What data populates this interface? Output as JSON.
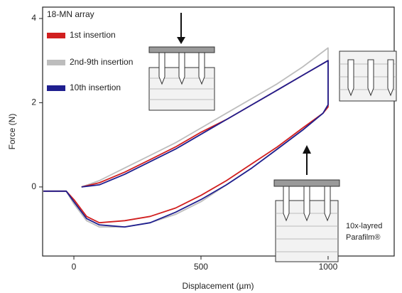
{
  "chart_data": {
    "type": "line",
    "title": "18-MN array",
    "x_label": "Displacement (µm)",
    "y_label": "Force (N)",
    "annotation": [
      "10x-layred",
      "Parafilm®"
    ],
    "xlim": [
      -123,
      1260
    ],
    "ylim": [
      -1.64,
      4.27
    ],
    "xticks": [
      0,
      500,
      1000
    ],
    "yticks": [
      0,
      2,
      4
    ],
    "series": [
      {
        "name": "2nd-9th insertion",
        "color": "#bdbdbd",
        "x": [
          -120,
          -30,
          0,
          50,
          100,
          200,
          300,
          400,
          500,
          600,
          700,
          800,
          900,
          980,
          1000,
          1000,
          900,
          800,
          700,
          600,
          500,
          400,
          300,
          200,
          100,
          30
        ],
        "values": [
          -0.1,
          -0.1,
          -0.4,
          -0.8,
          -0.95,
          -0.95,
          -0.85,
          -0.65,
          -0.35,
          0.05,
          0.45,
          0.9,
          1.35,
          1.75,
          1.95,
          3.3,
          2.85,
          2.45,
          2.1,
          1.75,
          1.4,
          1.05,
          0.75,
          0.45,
          0.15,
          0.0
        ]
      },
      {
        "name": "1st insertion",
        "color": "#d11f1f",
        "x": [
          -120,
          -30,
          0,
          50,
          100,
          200,
          300,
          400,
          500,
          600,
          700,
          800,
          900,
          980,
          1000,
          1000,
          900,
          800,
          700,
          600,
          500,
          400,
          300,
          200,
          100,
          30
        ],
        "values": [
          -0.1,
          -0.1,
          -0.3,
          -0.7,
          -0.85,
          -0.8,
          -0.7,
          -0.5,
          -0.2,
          0.15,
          0.55,
          0.95,
          1.4,
          1.75,
          1.9,
          3.0,
          2.65,
          2.3,
          1.95,
          1.6,
          1.3,
          0.95,
          0.65,
          0.35,
          0.1,
          0.0
        ]
      },
      {
        "name": "10th insertion",
        "color": "#1f1f8f",
        "x": [
          -120,
          -30,
          0,
          50,
          100,
          200,
          300,
          400,
          500,
          600,
          700,
          800,
          900,
          980,
          1000,
          1000,
          900,
          800,
          700,
          600,
          500,
          400,
          300,
          200,
          100,
          30
        ],
        "values": [
          -0.1,
          -0.1,
          -0.35,
          -0.75,
          -0.9,
          -0.95,
          -0.85,
          -0.6,
          -0.3,
          0.05,
          0.45,
          0.9,
          1.35,
          1.75,
          1.95,
          3.0,
          2.65,
          2.3,
          1.95,
          1.6,
          1.25,
          0.9,
          0.6,
          0.3,
          0.05,
          0.0
        ]
      }
    ]
  }
}
